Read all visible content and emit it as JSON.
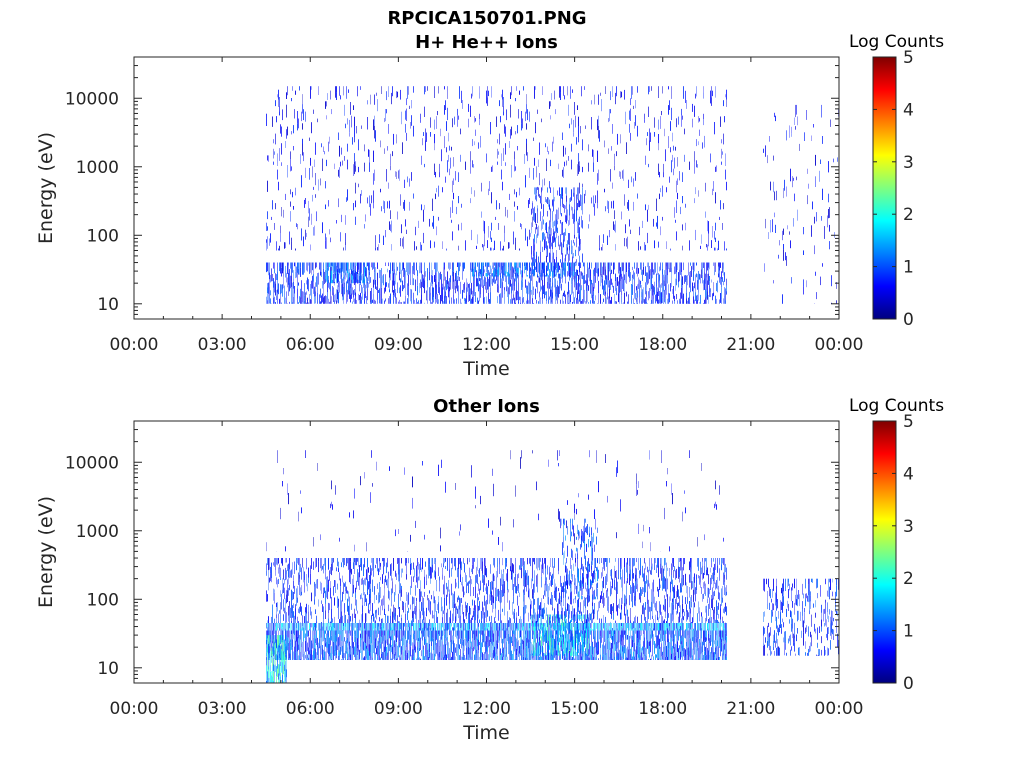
{
  "figure_title": "RPCICA150701.PNG",
  "chart_data": [
    {
      "type": "heatmap",
      "title": "H+ He++ Ions",
      "xlabel": "Time",
      "ylabel": "Energy (eV)",
      "x_ticks": [
        "00:00",
        "03:00",
        "06:00",
        "09:00",
        "12:00",
        "15:00",
        "18:00",
        "21:00",
        "00:00"
      ],
      "x_range_hours": [
        0,
        24
      ],
      "y_scale": "log",
      "y_ticks": [
        "10",
        "100",
        "1000",
        "10000"
      ],
      "y_range": [
        6,
        40000
      ],
      "colorbar": {
        "label": "Log Counts",
        "ticks": [
          "0",
          "1",
          "2",
          "3",
          "4",
          "5"
        ],
        "range": [
          0,
          5
        ],
        "colormap": "jet"
      },
      "data_coverage_hours": [
        [
          4.5,
          20.2
        ],
        [
          21.4,
          24.0
        ]
      ],
      "bands": [
        {
          "t": [
            4.5,
            20.2
          ],
          "e": [
            10,
            40
          ],
          "level": 0.8,
          "density": 0.55
        },
        {
          "t": [
            6.5,
            8.0
          ],
          "e": [
            20,
            40
          ],
          "level": 1.1,
          "density": 0.7
        },
        {
          "t": [
            11.5,
            15.0
          ],
          "e": [
            25,
            40
          ],
          "level": 1.1,
          "density": 0.6
        },
        {
          "t": [
            13.5,
            15.3
          ],
          "e": [
            40,
            500
          ],
          "level": 0.8,
          "density": 0.4
        },
        {
          "t": [
            4.5,
            20.2
          ],
          "e": [
            60,
            15000
          ],
          "level": 0.6,
          "density": 0.09
        },
        {
          "t": [
            21.4,
            24.0
          ],
          "e": [
            10,
            8000
          ],
          "level": 0.6,
          "density": 0.05
        }
      ]
    },
    {
      "type": "heatmap",
      "title": "Other Ions",
      "xlabel": "Time",
      "ylabel": "Energy (eV)",
      "x_ticks": [
        "00:00",
        "03:00",
        "06:00",
        "09:00",
        "12:00",
        "15:00",
        "18:00",
        "21:00",
        "00:00"
      ],
      "x_range_hours": [
        0,
        24
      ],
      "y_scale": "log",
      "y_ticks": [
        "10",
        "100",
        "1000",
        "10000"
      ],
      "y_range": [
        6,
        40000
      ],
      "colorbar": {
        "label": "Log Counts",
        "ticks": [
          "0",
          "1",
          "2",
          "3",
          "4",
          "5"
        ],
        "range": [
          0,
          5
        ],
        "colormap": "jet"
      },
      "data_coverage_hours": [
        [
          4.5,
          20.2
        ],
        [
          21.4,
          24.0
        ]
      ],
      "bands": [
        {
          "t": [
            4.5,
            20.2
          ],
          "e": [
            35,
            45
          ],
          "level": 1.3,
          "density": 0.95
        },
        {
          "t": [
            4.5,
            20.2
          ],
          "e": [
            13,
            35
          ],
          "level": 1.0,
          "density": 0.85
        },
        {
          "t": [
            4.5,
            5.2
          ],
          "e": [
            6,
            30
          ],
          "level": 1.7,
          "density": 0.9
        },
        {
          "t": [
            13.5,
            15.5
          ],
          "e": [
            15,
            60
          ],
          "level": 1.6,
          "density": 0.6
        },
        {
          "t": [
            4.5,
            20.2
          ],
          "e": [
            45,
            400
          ],
          "level": 0.8,
          "density": 0.4
        },
        {
          "t": [
            14.5,
            15.8
          ],
          "e": [
            100,
            1500
          ],
          "level": 1.0,
          "density": 0.35
        },
        {
          "t": [
            21.4,
            24.0
          ],
          "e": [
            15,
            200
          ],
          "level": 0.8,
          "density": 0.3
        },
        {
          "t": [
            4.5,
            20.2
          ],
          "e": [
            500,
            15000
          ],
          "level": 0.5,
          "density": 0.02
        }
      ]
    }
  ]
}
